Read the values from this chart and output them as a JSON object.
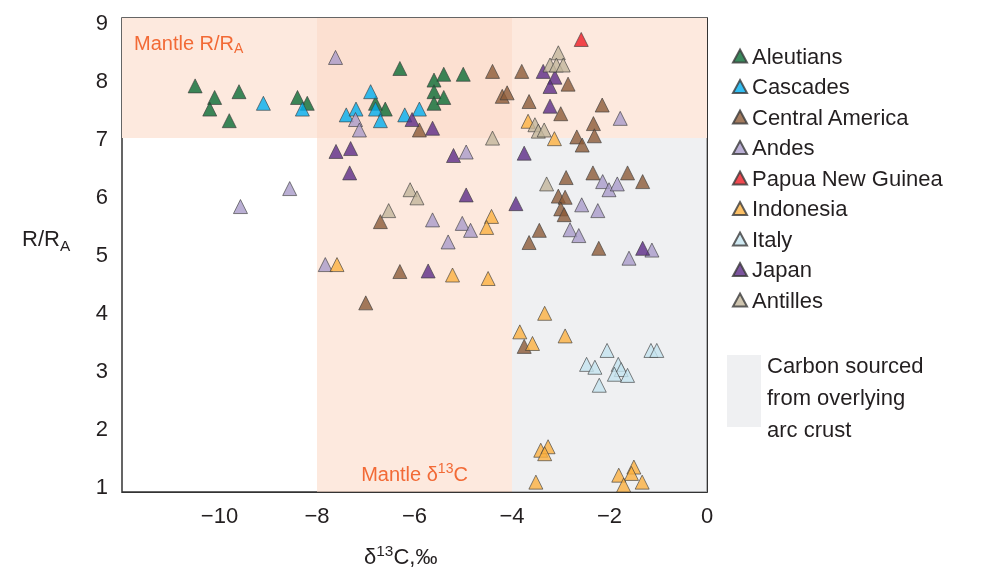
{
  "chart_data": {
    "type": "scatter",
    "xlabel": "δ$^{13}$C,‰",
    "ylabel": "R/R$_{A}$",
    "xlim": [
      -12,
      0
    ],
    "ylim": [
      0.9,
      9.07
    ],
    "xticks": [
      -10,
      -8,
      -6,
      -4,
      -2,
      0
    ],
    "yticks": [
      1,
      2,
      3,
      4,
      5,
      6,
      7,
      8,
      9
    ],
    "marker": "triangle",
    "legend": "right",
    "grid": false,
    "bands": [
      {
        "axis": "x",
        "from": -4,
        "to": 0,
        "label": "Carbon sourced from overlying arc crust",
        "color": "#e4e6e9"
      },
      {
        "axis": "y",
        "from": 7,
        "to": 9.07,
        "label": "Mantle R/R$_{A}$",
        "color": "#fde9de"
      },
      {
        "axis": "x",
        "from": -8,
        "to": -4,
        "label": "Mantle δ$^{13}$C",
        "color": "#fcdac8"
      }
    ],
    "series": [
      {
        "name": "Aleutians",
        "color": "#0a6b35",
        "x": [
          -10.5,
          -10.1,
          -10.2,
          -9.6,
          -9.8,
          -8.4,
          -8.2,
          -6.3,
          -6.8,
          -6.6,
          -5.4,
          -5.0,
          -5.6,
          -5.6,
          -5.4,
          -5.6
        ],
        "values": [
          7.9,
          7.7,
          7.5,
          7.8,
          7.3,
          7.7,
          7.6,
          8.2,
          7.6,
          7.5,
          8.1,
          8.1,
          8.0,
          7.8,
          7.7,
          7.6
        ]
      },
      {
        "name": "Cascades",
        "color": "#00aeef",
        "x": [
          -9.1,
          -8.3,
          -6.9,
          -7.4,
          -7.2,
          -6.8,
          -6.7,
          -6.2,
          -5.9
        ],
        "values": [
          7.6,
          7.5,
          7.8,
          7.4,
          7.5,
          7.5,
          7.3,
          7.4,
          7.5
        ]
      },
      {
        "name": "Central America",
        "color": "#8b5a37",
        "x": [
          -6.7,
          -5.9,
          -6.3,
          -7.0,
          -4.4,
          -3.8,
          -4.2,
          -4.1,
          -3.65,
          -2.85,
          -3.0,
          -2.15,
          -2.33,
          -2.31,
          -2.67,
          -2.56,
          -2.89,
          -2.34,
          -1.63,
          -1.32,
          -3.05,
          -2.91,
          -3.0,
          -2.93,
          -3.44,
          -3.65,
          -2.22,
          -3.75
        ],
        "values": [
          5.56,
          7.14,
          4.7,
          4.16,
          8.15,
          8.15,
          7.72,
          7.78,
          7.63,
          7.93,
          7.42,
          7.57,
          7.25,
          7.04,
          7.02,
          6.88,
          6.32,
          6.4,
          6.4,
          6.25,
          6.0,
          5.98,
          5.78,
          5.68,
          5.41,
          5.2,
          5.1,
          3.41
        ]
      },
      {
        "name": "Andes",
        "color": "#a99bc9",
        "x": [
          -7.62,
          -7.21,
          -7.13,
          -8.56,
          -9.57,
          -7.83,
          -1.78,
          -4.94,
          -2.14,
          -2.01,
          -1.84,
          -2.57,
          -2.24,
          -2.81,
          -2.63,
          -1.13,
          -1.6,
          -5.63,
          -5.02,
          -4.85,
          -5.31
        ],
        "values": [
          8.39,
          7.32,
          7.14,
          6.13,
          5.82,
          4.82,
          7.34,
          6.76,
          6.25,
          6.11,
          6.21,
          5.85,
          5.75,
          5.42,
          5.32,
          5.07,
          4.93,
          5.59,
          5.53,
          5.41,
          5.21
        ]
      },
      {
        "name": "Papua New Guinea",
        "color": "#ed1c24",
        "x": [
          -2.58
        ],
        "values": [
          8.7
        ]
      },
      {
        "name": "Indonesia",
        "color": "#fbb040",
        "x": [
          -7.59,
          -3.67,
          -3.13,
          -4.42,
          -4.52,
          -5.22,
          -4.49,
          -3.33,
          -3.84,
          -3.58,
          -2.91,
          -3.41,
          -3.26,
          -3.33,
          -3.51,
          -1.81,
          -1.5,
          -1.55,
          -1.33,
          -1.71
        ],
        "values": [
          4.82,
          7.29,
          6.99,
          5.65,
          5.46,
          4.64,
          4.58,
          3.98,
          3.66,
          3.46,
          3.59,
          1.62,
          1.68,
          1.56,
          1.07,
          1.19,
          1.33,
          1.22,
          1.07,
          1.02
        ]
      },
      {
        "name": "Italy",
        "color": "#c4e3ef",
        "x": [
          -2.05,
          -2.47,
          -2.3,
          -1.82,
          -1.76,
          -1.9,
          -1.63,
          -2.21,
          -1.15,
          -1.03
        ],
        "values": [
          3.34,
          3.1,
          3.05,
          3.1,
          3.01,
          2.93,
          2.91,
          2.74,
          3.34,
          3.34
        ]
      },
      {
        "name": "Japan",
        "color": "#5b2a86",
        "x": [
          -7.61,
          -7.31,
          -7.33,
          -6.05,
          -5.63,
          -3.36,
          -3.12,
          -3.22,
          -3.22,
          -5.2,
          -3.75,
          -4.94,
          -3.92,
          -5.72,
          -1.32
        ],
        "values": [
          6.77,
          6.82,
          6.4,
          7.32,
          7.17,
          8.15,
          8.05,
          7.89,
          7.55,
          6.7,
          6.74,
          6.02,
          5.87,
          4.71,
          5.1
        ]
      },
      {
        "name": "Antilles",
        "color": "#c2b59b",
        "x": [
          -6.53,
          -6.09,
          -5.95,
          -4.4,
          -3.05,
          -3.22,
          -3.09,
          -2.95,
          -3.53,
          -3.46,
          -3.34,
          -3.29
        ],
        "values": [
          5.75,
          6.11,
          5.97,
          7.0,
          8.47,
          8.26,
          8.26,
          8.26,
          7.23,
          7.12,
          7.14,
          6.21
        ]
      }
    ]
  }
}
